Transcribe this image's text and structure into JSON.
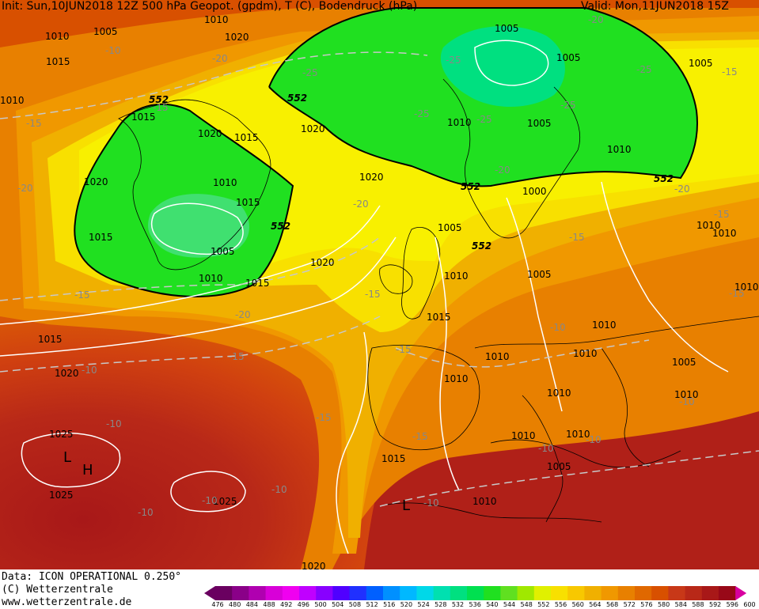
{
  "header": {
    "init": "Init: Sun,10JUN2018 12Z 500 hPa Geopot. (gpdm), T (C), Bodendruck (hPa)",
    "valid": "Valid: Mon,11JUN2018 15Z"
  },
  "footer": {
    "data": "Data: ICON OPERATIONAL 0.250°",
    "copyright": "(C) Wetterzentrale",
    "url": "www.wetterzentrale.de"
  },
  "scale": {
    "values": [
      "476",
      "480",
      "484",
      "488",
      "492",
      "496",
      "500",
      "504",
      "508",
      "512",
      "516",
      "520",
      "524",
      "528",
      "532",
      "536",
      "540",
      "544",
      "548",
      "552",
      "556",
      "560",
      "564",
      "568",
      "572",
      "576",
      "580",
      "584",
      "588",
      "592",
      "596",
      "600"
    ],
    "colors": [
      "#6a0060",
      "#8a0088",
      "#b000b0",
      "#d800d8",
      "#f000f0",
      "#c000ff",
      "#8800ff",
      "#5000ff",
      "#2030ff",
      "#0060ff",
      "#0090ff",
      "#00b8ff",
      "#00d8e8",
      "#00e0b0",
      "#00e080",
      "#00e050",
      "#20e020",
      "#60e020",
      "#a0e800",
      "#e0f000",
      "#f8e000",
      "#f8c800",
      "#f0b000",
      "#f09800",
      "#e88000",
      "#e06800",
      "#d85000",
      "#c83818",
      "#b82818",
      "#a81818",
      "#980818",
      "#d800a0"
    ]
  },
  "map": {
    "colors": {
      "ocean_dark": "#b82818",
      "deep_red": "#a81818",
      "orange_red": "#d85000",
      "orange": "#e88000",
      "light_orange": "#f09800",
      "amber": "#f0b000",
      "yellow": "#f8e000",
      "yellow_light": "#f8f000",
      "green": "#20e020",
      "green_light": "#60e020",
      "cyan_green": "#00e080"
    },
    "contour_552": "552",
    "pressure_labels": [
      "1010",
      "1005",
      "1015",
      "1020",
      "1010",
      "1005",
      "1020",
      "1015",
      "1010",
      "1015",
      "1020",
      "1005",
      "1005",
      "1005",
      "1010",
      "1010",
      "1025",
      "1025",
      "1025",
      "1020",
      "1015",
      "1015",
      "1010",
      "1005",
      "1000",
      "1005",
      "1010",
      "1010",
      "1010",
      "1010",
      "1005",
      "1005",
      "1010",
      "1015",
      "1010",
      "1010",
      "1010",
      "1010",
      "1015",
      "1020",
      "1020",
      "1010",
      "1015",
      "1010",
      "1020",
      "1010",
      "1015",
      "1010",
      "1005",
      "1010",
      "1020"
    ],
    "temp_labels": [
      "-10",
      "-15",
      "-20",
      "-25",
      "-25",
      "-25",
      "-25",
      "-20",
      "-25",
      "-20",
      "-15",
      "-20",
      "-15",
      "-20",
      "-15",
      "-15",
      "-15",
      "-15",
      "-10",
      "-10",
      "-15",
      "-10",
      "-15",
      "-10",
      "-10",
      "-15",
      "-10",
      "-15",
      "-20",
      "-15",
      "-20",
      "-25",
      "-10",
      "-10",
      "-10",
      "-10"
    ],
    "symbols": [
      "L",
      "H",
      "L"
    ]
  }
}
